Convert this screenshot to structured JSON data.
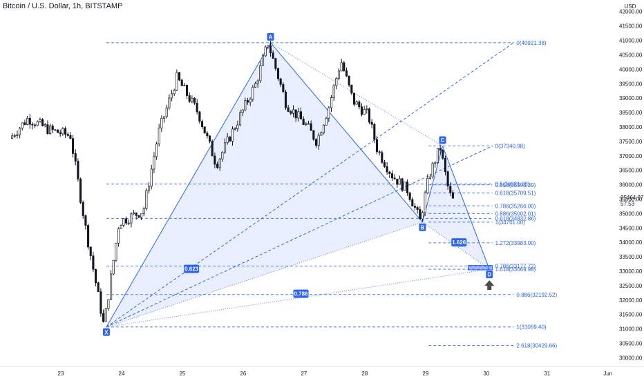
{
  "header": {
    "title": "Bitcoin / U.S. Dollar, 1h, BITSTAMP"
  },
  "price_axis": {
    "currency": "USD",
    "last_price": "35464.97",
    "countdown": "57:53"
  },
  "colors": {
    "up": "#131722",
    "down": "#131722",
    "pattern_line": "#2962ff",
    "pattern_fill": "#2962ff",
    "fib_line": "#2962ff",
    "arrow": "#4a4a4a",
    "badge_bg": "#2962ff",
    "badge_text": "#ffffff",
    "axis_text": "#131722",
    "axis_bg": "#ffffff"
  },
  "chart_data": {
    "type": "candlestick",
    "title": "Bitcoin / U.S. Dollar, 1h, BITSTAMP",
    "xlabel": "",
    "ylabel": "USD",
    "ylim": [
      29700,
      42400
    ],
    "y_ticks": [
      30000,
      30500,
      31000,
      31500,
      32000,
      32500,
      33000,
      33500,
      34000,
      34500,
      35000,
      35500,
      36000,
      36500,
      37000,
      37500,
      38000,
      38500,
      39000,
      39500,
      40000,
      40500,
      41000,
      41500,
      42000
    ],
    "x_ticks": [
      {
        "label": "23",
        "day": 23
      },
      {
        "label": "24",
        "day": 24
      },
      {
        "label": "25",
        "day": 25
      },
      {
        "label": "26",
        "day": 26
      },
      {
        "label": "27",
        "day": 27
      },
      {
        "label": "28",
        "day": 28
      },
      {
        "label": "29",
        "day": 29
      },
      {
        "label": "30",
        "day": 30
      },
      {
        "label": "31",
        "day": 31
      },
      {
        "label": "Jun",
        "day": 32
      }
    ],
    "anchors": [
      {
        "day": 22.2,
        "price": 37600
      },
      {
        "day": 22.5,
        "price": 38300
      },
      {
        "day": 22.85,
        "price": 37900
      },
      {
        "day": 23.2,
        "price": 37700
      },
      {
        "day": 23.45,
        "price": 34500
      },
      {
        "day": 23.75,
        "price": 31100
      },
      {
        "day": 24.0,
        "price": 34700
      },
      {
        "day": 24.4,
        "price": 35100
      },
      {
        "day": 24.65,
        "price": 37800
      },
      {
        "day": 24.95,
        "price": 39700
      },
      {
        "day": 25.3,
        "price": 38500
      },
      {
        "day": 25.6,
        "price": 36700
      },
      {
        "day": 25.95,
        "price": 38200
      },
      {
        "day": 26.25,
        "price": 39500
      },
      {
        "day": 26.45,
        "price": 40920
      },
      {
        "day": 26.75,
        "price": 38800
      },
      {
        "day": 27.1,
        "price": 38000
      },
      {
        "day": 27.25,
        "price": 37500
      },
      {
        "day": 27.45,
        "price": 38700
      },
      {
        "day": 27.65,
        "price": 40300
      },
      {
        "day": 27.85,
        "price": 38900
      },
      {
        "day": 28.1,
        "price": 38400
      },
      {
        "day": 28.25,
        "price": 37200
      },
      {
        "day": 28.5,
        "price": 36300
      },
      {
        "day": 28.75,
        "price": 35800
      },
      {
        "day": 28.95,
        "price": 34750
      },
      {
        "day": 29.1,
        "price": 36300
      },
      {
        "day": 29.28,
        "price": 37300
      },
      {
        "day": 29.42,
        "price": 35800
      },
      {
        "day": 29.48,
        "price": 35460
      }
    ],
    "harmonic_pattern": {
      "points": [
        {
          "label": "X",
          "day": 23.75,
          "price": 31069
        },
        {
          "label": "A",
          "day": 26.45,
          "price": 40921.38
        },
        {
          "label": "B",
          "day": 28.95,
          "price": 34701
        },
        {
          "label": "C",
          "day": 29.28,
          "price": 37340.98
        },
        {
          "label": "D",
          "day": 30.05,
          "price": 33069.98
        }
      ],
      "ratios": [
        {
          "label": "0.623",
          "day": 25.15,
          "price": 33080
        },
        {
          "label": "0.786",
          "day": 26.95,
          "price": 32220
        },
        {
          "label": "1.626",
          "day": 29.55,
          "price": 34000
        }
      ],
      "prz_zone": [
        33069.98,
        33177.72
      ]
    },
    "fib_levels": [
      {
        "label": "0(40921.38)",
        "price": 40921.38,
        "from_day": 23.75,
        "to_day": 30.45
      },
      {
        "label": "0(37340.98)",
        "price": 37340.98,
        "from_day": 29.05,
        "to_day": 30.1
      },
      {
        "label": "0.5(36021.08)",
        "price": 36021.08,
        "from_day": 23.75,
        "to_day": 30.1
      },
      {
        "label": "0.618(35995.39)",
        "price": 35995.39,
        "from_day": 29.05,
        "to_day": 30.1
      },
      {
        "label": "0.618(35709.51)",
        "price": 35709.51,
        "from_day": 29.05,
        "to_day": 30.1
      },
      {
        "label": "0.786(35266.00)",
        "price": 35266.0,
        "from_day": 29.05,
        "to_day": 30.1
      },
      {
        "label": "0.886(35002.01)",
        "price": 35002.01,
        "from_day": 29.05,
        "to_day": 30.1
      },
      {
        "label": "0.618(34832.86)",
        "price": 34832.86,
        "from_day": 23.75,
        "to_day": 30.1
      },
      {
        "label": "1(34701.00)",
        "price": 34701.0,
        "from_day": 29.05,
        "to_day": 30.1
      },
      {
        "label": "1.272(33983.00)",
        "price": 33983.0,
        "from_day": 29.05,
        "to_day": 30.1
      },
      {
        "label": "0.786(33177.72)",
        "price": 33177.72,
        "from_day": 23.75,
        "to_day": 30.1
      },
      {
        "label": "1.618(33069.98)",
        "price": 33069.98,
        "from_day": 29.05,
        "to_day": 30.1
      },
      {
        "label": "0.886(32192.52)",
        "price": 32192.52,
        "from_day": 23.75,
        "to_day": 30.45
      },
      {
        "label": "1(31069.40)",
        "price": 31069.4,
        "from_day": 23.75,
        "to_day": 30.45
      },
      {
        "label": "2.618(30429.66)",
        "price": 30429.66,
        "from_day": 29.05,
        "to_day": 30.45
      }
    ]
  }
}
